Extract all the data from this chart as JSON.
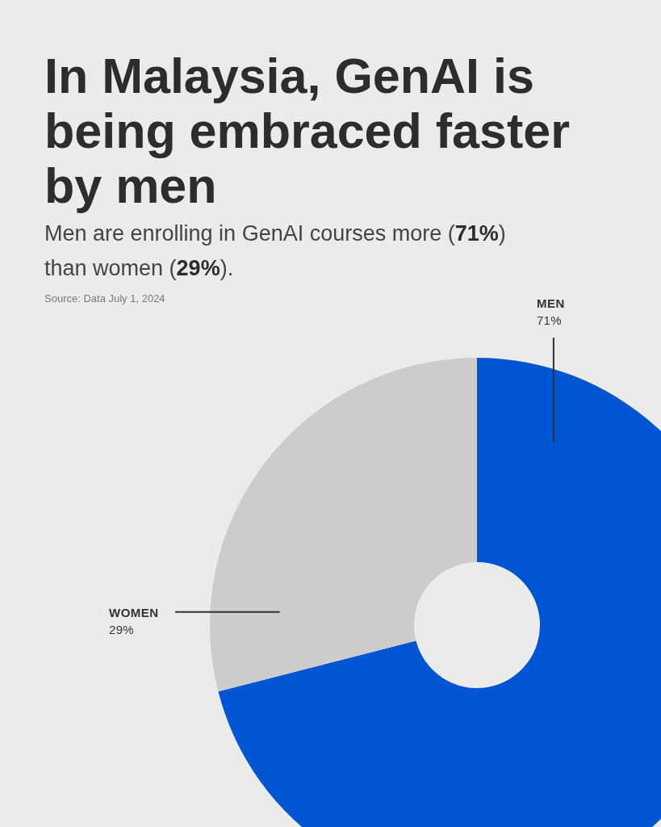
{
  "chart_data": {
    "type": "donut",
    "title": "In Malaysia, GenAI is being embraced faster by men",
    "subtitle": "Men are enrolling in GenAI courses more (71%) than women (29%).",
    "categories": [
      "MEN",
      "WOMEN"
    ],
    "values": [
      71,
      29
    ],
    "value_labels": [
      "71%",
      "29%"
    ],
    "colors": [
      "#0056d2",
      "#cccccc"
    ],
    "annotations": [
      "Source: Data July 1, 2024"
    ]
  }
}
